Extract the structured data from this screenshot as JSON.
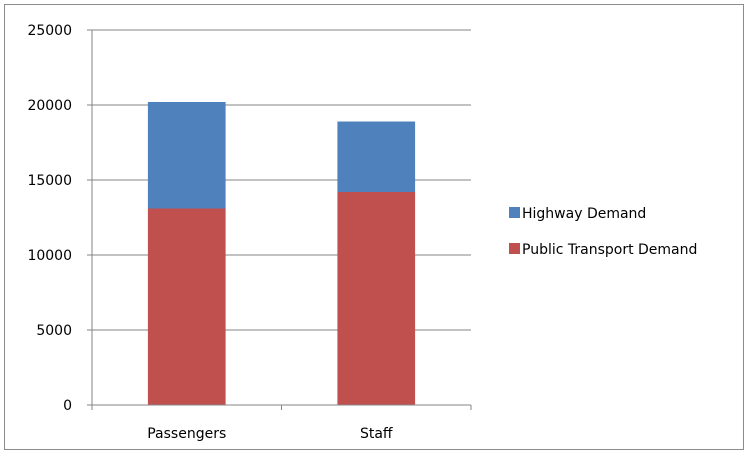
{
  "chart_data": {
    "type": "bar",
    "stacked": true,
    "categories": [
      "Passengers",
      "Staff"
    ],
    "series": [
      {
        "name": "Public Transport Demand",
        "values": [
          13100,
          14200
        ],
        "color": "#c0504d"
      },
      {
        "name": "Highway Demand",
        "values": [
          7100,
          4700
        ],
        "color": "#4f81bd"
      }
    ],
    "ylim": [
      0,
      25000
    ],
    "yticks": [
      0,
      5000,
      10000,
      15000,
      20000,
      25000
    ],
    "grid": true,
    "legend_position": "right",
    "legend_order": [
      "Highway Demand",
      "Public Transport Demand"
    ]
  }
}
